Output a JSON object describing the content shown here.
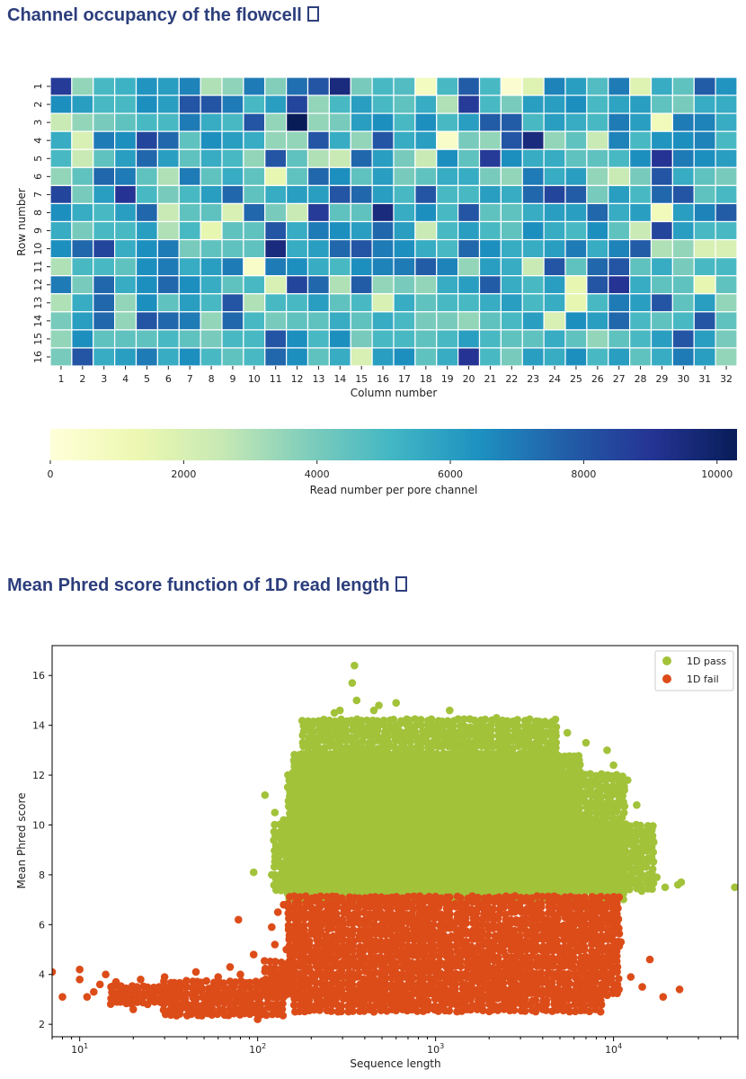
{
  "sections": [
    {
      "title": "Channel occupancy of the flowcell"
    },
    {
      "title": "Mean Phred score function of 1D read length"
    }
  ],
  "chart_data": [
    {
      "type": "heatmap",
      "xlabel": "Column number",
      "ylabel": "Row number",
      "x_categories": [
        "1",
        "2",
        "3",
        "4",
        "5",
        "6",
        "7",
        "8",
        "9",
        "10",
        "11",
        "12",
        "13",
        "14",
        "15",
        "16",
        "17",
        "18",
        "19",
        "20",
        "21",
        "22",
        "23",
        "24",
        "25",
        "26",
        "27",
        "28",
        "29",
        "30",
        "31",
        "32"
      ],
      "y_categories": [
        "1",
        "2",
        "3",
        "4",
        "5",
        "6",
        "7",
        "8",
        "9",
        "10",
        "11",
        "12",
        "13",
        "14",
        "15",
        "16"
      ],
      "colorbar": {
        "label": "Read number per pore channel",
        "ticks": [
          0,
          2000,
          4000,
          6000,
          8000,
          10000
        ],
        "range": [
          0,
          10300
        ],
        "colormap": "YlGnBu"
      },
      "values": [
        [
          8800,
          3500,
          5000,
          5300,
          6300,
          6000,
          6800,
          3000,
          3600,
          7000,
          3800,
          7300,
          8000,
          9500,
          4000,
          5000,
          4800,
          800,
          5000,
          7800,
          5000,
          300,
          1800,
          6800,
          6000,
          4800,
          7000,
          1800,
          5500,
          4500,
          7800,
          6300
        ],
        [
          6500,
          6000,
          5000,
          5000,
          6500,
          6000,
          8000,
          8000,
          7000,
          5000,
          6000,
          8500,
          3500,
          5000,
          6000,
          5000,
          4500,
          5500,
          3000,
          8800,
          5000,
          4000,
          6000,
          6000,
          6500,
          5000,
          5800,
          6000,
          4500,
          4000,
          5500,
          5500
        ],
        [
          2500,
          3500,
          4000,
          4500,
          5000,
          5000,
          7000,
          5500,
          5000,
          8000,
          3500,
          10300,
          3500,
          4000,
          6000,
          6500,
          5000,
          6500,
          5000,
          6000,
          7800,
          7800,
          5000,
          6000,
          5500,
          5000,
          7000,
          6000,
          1000,
          7000,
          6800,
          5500
        ],
        [
          5500,
          2000,
          7000,
          6500,
          8500,
          7500,
          4500,
          6500,
          6000,
          5500,
          3500,
          3500,
          8000,
          5500,
          3500,
          8000,
          5500,
          6000,
          500,
          4000,
          3500,
          8000,
          9500,
          3500,
          4500,
          2500,
          6800,
          5000,
          6300,
          6500,
          6800,
          5000
        ],
        [
          5000,
          2500,
          4500,
          6000,
          7500,
          6000,
          4500,
          5500,
          5000,
          3500,
          8000,
          4500,
          3000,
          2500,
          7500,
          6000,
          4000,
          2500,
          6500,
          4500,
          8800,
          6500,
          5500,
          5500,
          4500,
          4500,
          5000,
          6500,
          9000,
          7000,
          6500,
          6000
        ],
        [
          3500,
          4500,
          7500,
          7000,
          4500,
          3000,
          7000,
          4500,
          5500,
          4500,
          1500,
          4500,
          7500,
          6500,
          4500,
          6000,
          4000,
          4500,
          5500,
          5500,
          4000,
          3500,
          7000,
          5500,
          6000,
          3500,
          2500,
          4000,
          8000,
          5500,
          4500,
          4000
        ],
        [
          8500,
          4000,
          6000,
          9000,
          5000,
          4000,
          5000,
          6000,
          7500,
          4500,
          5500,
          6000,
          6000,
          8000,
          7500,
          6000,
          5000,
          8000,
          5000,
          5000,
          6000,
          5500,
          7500,
          8500,
          7800,
          4000,
          6000,
          5000,
          7500,
          8000,
          4500,
          5000
        ],
        [
          6500,
          5500,
          5000,
          6000,
          7500,
          2500,
          4500,
          4500,
          2000,
          7500,
          4000,
          2500,
          8800,
          4500,
          4500,
          9500,
          5500,
          6500,
          5000,
          8000,
          4500,
          4500,
          5500,
          6000,
          6000,
          7500,
          5500,
          6000,
          1000,
          6000,
          6800,
          7800
        ],
        [
          5500,
          4000,
          5000,
          5000,
          6000,
          3000,
          5000,
          1500,
          4500,
          4500,
          8000,
          5500,
          7000,
          6500,
          6000,
          7500,
          6000,
          2500,
          5000,
          6000,
          5000,
          4500,
          6500,
          5500,
          5000,
          6500,
          4500,
          2500,
          8500,
          6000,
          5000,
          5000
        ],
        [
          6500,
          7500,
          8500,
          5500,
          6500,
          7000,
          4000,
          4500,
          4500,
          4500,
          9500,
          5500,
          6000,
          7500,
          8000,
          7000,
          6500,
          5500,
          5000,
          7500,
          6500,
          5500,
          5500,
          6000,
          7000,
          5500,
          6800,
          7800,
          3000,
          3500,
          2000,
          2000
        ],
        [
          3000,
          5000,
          5000,
          4500,
          6500,
          7000,
          5500,
          6000,
          7000,
          500,
          7000,
          6500,
          5500,
          5000,
          6500,
          6800,
          7000,
          7800,
          6800,
          3500,
          6000,
          5500,
          2500,
          8000,
          4500,
          7500,
          8000,
          4500,
          5500,
          4000,
          5000,
          5000
        ],
        [
          7000,
          4000,
          7500,
          5500,
          6500,
          7500,
          6500,
          5500,
          4500,
          5000,
          2000,
          8500,
          7500,
          3000,
          7800,
          3500,
          4000,
          3500,
          5500,
          6000,
          7800,
          5500,
          5000,
          6000,
          1500,
          8000,
          9000,
          5500,
          4500,
          4500,
          1500,
          4500
        ],
        [
          3000,
          5500,
          7500,
          3500,
          6500,
          4500,
          6000,
          5000,
          8000,
          3000,
          5000,
          5000,
          6000,
          4500,
          5000,
          2000,
          5500,
          4500,
          5000,
          5000,
          5500,
          6000,
          5000,
          5500,
          1500,
          5000,
          7000,
          6000,
          8000,
          4500,
          6000,
          3500
        ],
        [
          4000,
          6000,
          7500,
          3500,
          8000,
          7500,
          7000,
          3500,
          7500,
          5000,
          4000,
          4500,
          4500,
          5500,
          4500,
          5500,
          5000,
          4000,
          4000,
          3500,
          4500,
          5000,
          6000,
          2000,
          6500,
          6000,
          7500,
          5000,
          4500,
          5000,
          8000,
          4500
        ],
        [
          3500,
          6500,
          4500,
          4500,
          4500,
          5000,
          4500,
          4000,
          5000,
          5000,
          8000,
          6500,
          5000,
          6500,
          4000,
          5000,
          5000,
          4500,
          5000,
          6000,
          5000,
          4500,
          4500,
          5500,
          4500,
          3500,
          4500,
          5000,
          6000,
          8000,
          6000,
          4000
        ],
        [
          4000,
          8000,
          5500,
          6000,
          7000,
          5500,
          6500,
          5000,
          4500,
          5000,
          7500,
          6500,
          4500,
          5500,
          2000,
          6000,
          6500,
          4500,
          5500,
          9000,
          5000,
          4000,
          6000,
          5500,
          6500,
          5000,
          6000,
          4500,
          5500,
          7000,
          6000,
          3500
        ]
      ]
    },
    {
      "type": "scatter",
      "xlabel": "Sequence length",
      "ylabel": "Mean Phred score",
      "xscale": "log",
      "xlim": [
        7,
        50000
      ],
      "ylim": [
        1.5,
        17.2
      ],
      "xticks": [
        {
          "value": 10,
          "label": "10",
          "sup": "1"
        },
        {
          "value": 100,
          "label": "10",
          "sup": "2"
        },
        {
          "value": 1000,
          "label": "10",
          "sup": "3"
        },
        {
          "value": 10000,
          "label": "10",
          "sup": "4"
        }
      ],
      "yticks": [
        2,
        4,
        6,
        8,
        10,
        12,
        14,
        16
      ],
      "legend": "top-right",
      "series": [
        {
          "name": "1D pass",
          "color": "#a2c23a",
          "regions": [
            {
              "x": [
                160,
                6500
              ],
              "y": [
                7.0,
                12.8
              ]
            },
            {
              "x": [
                180,
                5000
              ],
              "y": [
                7.0,
                14.2
              ]
            },
            {
              "x": [
                150,
                12000
              ],
              "y": [
                7.0,
                12.0
              ]
            },
            {
              "x": [
                125,
                17000
              ],
              "y": [
                7.2,
                10.0
              ]
            }
          ],
          "outliers": [
            [
              350,
              16.4
            ],
            [
              340,
              15.7
            ],
            [
              360,
              15.0
            ],
            [
              290,
              14.6
            ],
            [
              220,
              13.8
            ],
            [
              270,
              14.5
            ],
            [
              600,
              14.9
            ],
            [
              480,
              14.8
            ],
            [
              450,
              14.6
            ],
            [
              1200,
              14.6
            ],
            [
              2200,
              14.3
            ],
            [
              3300,
              14.2
            ],
            [
              5500,
              13.7
            ],
            [
              7000,
              13.3
            ],
            [
              9200,
              13.0
            ],
            [
              10000,
              12.4
            ],
            [
              12000,
              11.8
            ],
            [
              13500,
              10.8
            ],
            [
              15500,
              9.7
            ],
            [
              16800,
              9.3
            ],
            [
              13800,
              7.7
            ],
            [
              17500,
              7.9
            ],
            [
              19500,
              7.5
            ],
            [
              23000,
              7.6
            ],
            [
              24000,
              7.7
            ],
            [
              48000,
              7.5
            ],
            [
              110,
              11.2
            ],
            [
              125,
              10.5
            ],
            [
              128,
              9.6
            ],
            [
              95,
              8.1
            ],
            [
              120,
              8.0
            ],
            [
              130,
              7.6
            ],
            [
              140,
              10.2
            ],
            [
              150,
              11.5
            ],
            [
              160,
              12.6
            ]
          ]
        },
        {
          "name": "1D fail",
          "color": "#dc4c19",
          "regions": [
            {
              "x": [
                150,
                11000
              ],
              "y": [
                3.0,
                7.1
              ]
            },
            {
              "x": [
                160,
                9000
              ],
              "y": [
                2.5,
                3.2
              ]
            },
            {
              "x": [
                30,
                140
              ],
              "y": [
                2.3,
                3.7
              ]
            },
            {
              "x": [
                110,
                160
              ],
              "y": [
                3.2,
                4.5
              ]
            },
            {
              "x": [
                15,
                35
              ],
              "y": [
                2.8,
                3.5
              ]
            }
          ],
          "outliers": [
            [
              7,
              4.1
            ],
            [
              8,
              3.1
            ],
            [
              10,
              4.2
            ],
            [
              10,
              3.8
            ],
            [
              11,
              3.1
            ],
            [
              12,
              3.3
            ],
            [
              13,
              3.6
            ],
            [
              14,
              4.0
            ],
            [
              15,
              3.5
            ],
            [
              16,
              3.7
            ],
            [
              18,
              3.3
            ],
            [
              20,
              2.6
            ],
            [
              21,
              3.1
            ],
            [
              22,
              3.8
            ],
            [
              25,
              3.0
            ],
            [
              28,
              3.5
            ],
            [
              30,
              3.9
            ],
            [
              32,
              3.0
            ],
            [
              40,
              3.5
            ],
            [
              45,
              4.1
            ],
            [
              60,
              3.9
            ],
            [
              70,
              4.3
            ],
            [
              80,
              4.0
            ],
            [
              78,
              6.2
            ],
            [
              95,
              4.8
            ],
            [
              100,
              2.2
            ],
            [
              120,
              5.9
            ],
            [
              125,
              5.2
            ],
            [
              130,
              6.5
            ],
            [
              140,
              6.8
            ],
            [
              145,
              5.0
            ],
            [
              11000,
              5.3
            ],
            [
              12500,
              3.9
            ],
            [
              14500,
              3.5
            ],
            [
              16000,
              4.6
            ],
            [
              19000,
              3.1
            ],
            [
              23500,
              3.4
            ]
          ]
        }
      ]
    }
  ]
}
